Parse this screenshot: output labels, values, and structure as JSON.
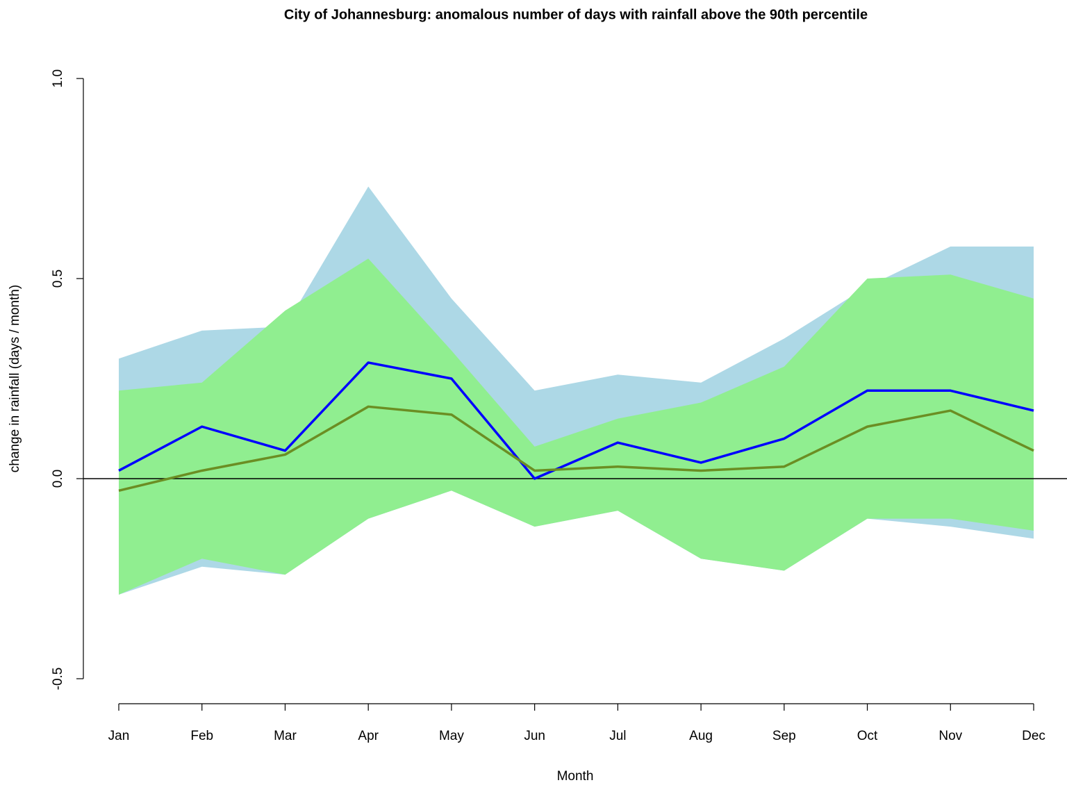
{
  "chart_data": {
    "type": "band-line",
    "title": "City of Johannesburg: anomalous number of days with rainfall above the 90th percentile",
    "xlabel": "Month",
    "ylabel": "change in rainfall (days / month)",
    "categories": [
      "Jan",
      "Feb",
      "Mar",
      "Apr",
      "May",
      "Jun",
      "Jul",
      "Aug",
      "Sep",
      "Oct",
      "Nov",
      "Dec"
    ],
    "ylim": [
      -0.5,
      1
    ],
    "yticks": [
      {
        "value": -0.5,
        "label": "-0.5"
      },
      {
        "value": 0,
        "label": "0.0"
      },
      {
        "value": 0.5,
        "label": "0.5"
      },
      {
        "value": 1,
        "label": "1.0"
      }
    ],
    "hline": 0,
    "bands": [
      {
        "color": "#add8e6",
        "upper": [
          0.3,
          0.37,
          0.38,
          0.73,
          0.45,
          0.22,
          0.26,
          0.24,
          0.35,
          0.48,
          0.58,
          0.58
        ],
        "lower": [
          -0.29,
          -0.22,
          -0.24,
          -0.1,
          -0.03,
          -0.12,
          -0.08,
          -0.2,
          -0.23,
          -0.1,
          -0.12,
          -0.15
        ]
      },
      {
        "color": "#90ee90",
        "upper": [
          0.22,
          0.24,
          0.42,
          0.55,
          0.32,
          0.08,
          0.15,
          0.19,
          0.28,
          0.5,
          0.51,
          0.45
        ],
        "lower": [
          -0.29,
          -0.2,
          -0.24,
          -0.1,
          -0.03,
          -0.12,
          -0.08,
          -0.2,
          -0.23,
          -0.1,
          -0.1,
          -0.13
        ]
      }
    ],
    "series": [
      {
        "color": "#0000ff",
        "values": [
          0.02,
          0.13,
          0.07,
          0.29,
          0.25,
          0.0,
          0.09,
          0.04,
          0.1,
          0.22,
          0.22,
          0.17
        ]
      },
      {
        "color": "#6b8e23",
        "values": [
          -0.03,
          0.02,
          0.06,
          0.18,
          0.16,
          0.02,
          0.03,
          0.02,
          0.03,
          0.13,
          0.17,
          0.07
        ]
      }
    ]
  }
}
